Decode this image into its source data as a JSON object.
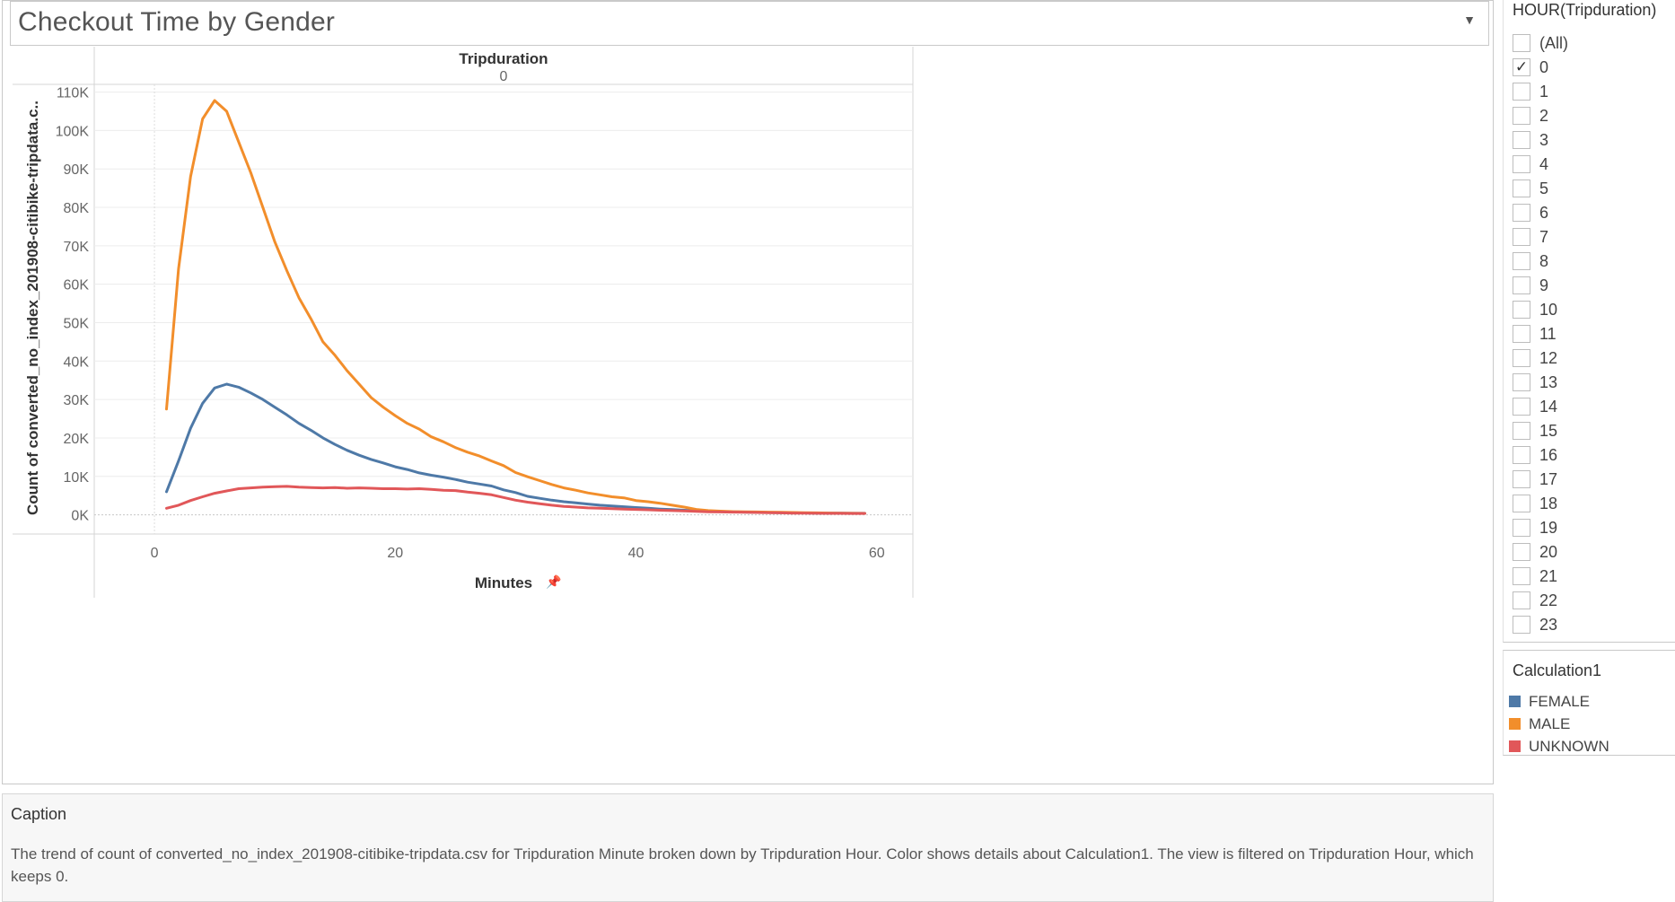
{
  "title": "Checkout Time by Gender",
  "chart_data": {
    "type": "line",
    "column_header": "Tripduration",
    "column_value": "0",
    "xlabel": "Minutes",
    "ylabel": "Count of converted_no_index_201908-citibike-tripdata.c..",
    "xlim": [
      -5,
      63
    ],
    "ylim": [
      -5000,
      112000
    ],
    "x_ticks": [
      0,
      20,
      40,
      60
    ],
    "x_tick_labels": [
      "0",
      "20",
      "40",
      "60"
    ],
    "y_ticks": [
      0,
      10000,
      20000,
      30000,
      40000,
      50000,
      60000,
      70000,
      80000,
      90000,
      100000,
      110000
    ],
    "y_tick_labels": [
      "0K",
      "10K",
      "20K",
      "30K",
      "40K",
      "50K",
      "60K",
      "70K",
      "80K",
      "90K",
      "100K",
      "110K"
    ],
    "grid": true,
    "x": [
      1,
      2,
      3,
      4,
      5,
      6,
      7,
      8,
      9,
      10,
      11,
      12,
      13,
      14,
      15,
      16,
      17,
      18,
      19,
      20,
      21,
      22,
      23,
      24,
      25,
      26,
      27,
      28,
      29,
      30,
      31,
      32,
      33,
      34,
      35,
      36,
      37,
      38,
      39,
      40,
      41,
      42,
      43,
      44,
      45,
      46,
      47,
      48,
      49,
      50,
      51,
      52,
      53,
      54,
      55,
      56,
      57,
      58,
      59
    ],
    "series": [
      {
        "name": "FEMALE",
        "color": "#4e79a7",
        "values": [
          6000,
          14000,
          22500,
          29000,
          33000,
          34000,
          33200,
          31700,
          30000,
          28000,
          26000,
          23800,
          22000,
          20000,
          18300,
          16800,
          15500,
          14400,
          13500,
          12500,
          11800,
          10900,
          10300,
          9800,
          9200,
          8500,
          8000,
          7500,
          6500,
          5800,
          4800,
          4300,
          3800,
          3400,
          3100,
          2800,
          2500,
          2300,
          2100,
          1900,
          1700,
          1500,
          1350,
          1200,
          1050,
          950,
          850,
          780,
          700,
          650,
          600,
          550,
          500,
          480,
          450,
          430,
          410,
          400,
          390
        ]
      },
      {
        "name": "MALE",
        "color": "#f28e2b",
        "values": [
          27500,
          64000,
          88000,
          103000,
          107800,
          105000,
          97000,
          89000,
          80000,
          71000,
          63500,
          56500,
          51000,
          45000,
          41500,
          37500,
          34000,
          30500,
          28000,
          25800,
          23800,
          22300,
          20300,
          19000,
          17500,
          16300,
          15300,
          14000,
          12800,
          11000,
          9900,
          8900,
          7900,
          7000,
          6400,
          5700,
          5200,
          4700,
          4400,
          3700,
          3400,
          3000,
          2500,
          2000,
          1400,
          1100,
          950,
          850,
          800,
          750,
          700,
          650,
          600,
          550,
          500,
          460,
          430,
          400,
          380
        ]
      },
      {
        "name": "UNKNOWN",
        "color": "#e15759",
        "values": [
          1700,
          2500,
          3700,
          4700,
          5600,
          6200,
          6800,
          7000,
          7200,
          7300,
          7400,
          7200,
          7100,
          7000,
          7100,
          6900,
          7000,
          6900,
          6800,
          6800,
          6700,
          6800,
          6600,
          6400,
          6300,
          5900,
          5600,
          5200,
          4500,
          3800,
          3300,
          2900,
          2500,
          2200,
          2000,
          1800,
          1700,
          1600,
          1500,
          1400,
          1300,
          1200,
          1100,
          1000,
          900,
          800,
          750,
          700,
          650,
          600,
          550,
          500,
          450,
          420,
          400,
          380,
          360,
          350,
          340
        ]
      }
    ]
  },
  "filter": {
    "title": "HOUR(Tripduration)",
    "checked_mark": "✓",
    "items": [
      {
        "label": "(All)",
        "checked": false
      },
      {
        "label": "0",
        "checked": true
      },
      {
        "label": "1",
        "checked": false
      },
      {
        "label": "2",
        "checked": false
      },
      {
        "label": "3",
        "checked": false
      },
      {
        "label": "4",
        "checked": false
      },
      {
        "label": "5",
        "checked": false
      },
      {
        "label": "6",
        "checked": false
      },
      {
        "label": "7",
        "checked": false
      },
      {
        "label": "8",
        "checked": false
      },
      {
        "label": "9",
        "checked": false
      },
      {
        "label": "10",
        "checked": false
      },
      {
        "label": "11",
        "checked": false
      },
      {
        "label": "12",
        "checked": false
      },
      {
        "label": "13",
        "checked": false
      },
      {
        "label": "14",
        "checked": false
      },
      {
        "label": "15",
        "checked": false
      },
      {
        "label": "16",
        "checked": false
      },
      {
        "label": "17",
        "checked": false
      },
      {
        "label": "18",
        "checked": false
      },
      {
        "label": "19",
        "checked": false
      },
      {
        "label": "20",
        "checked": false
      },
      {
        "label": "21",
        "checked": false
      },
      {
        "label": "22",
        "checked": false
      },
      {
        "label": "23",
        "checked": false
      }
    ]
  },
  "legend": {
    "title": "Calculation1",
    "items": [
      {
        "label": "FEMALE",
        "color": "#4e79a7"
      },
      {
        "label": "MALE",
        "color": "#f28e2b"
      },
      {
        "label": "UNKNOWN",
        "color": "#e15759"
      }
    ]
  },
  "caption": {
    "title": "Caption",
    "text": "The trend of count of converted_no_index_201908-citibike-tripdata.csv for Tripduration Minute broken down by Tripduration Hour.  Color shows details about Calculation1. The view is filtered on Tripduration Hour, which keeps 0."
  }
}
